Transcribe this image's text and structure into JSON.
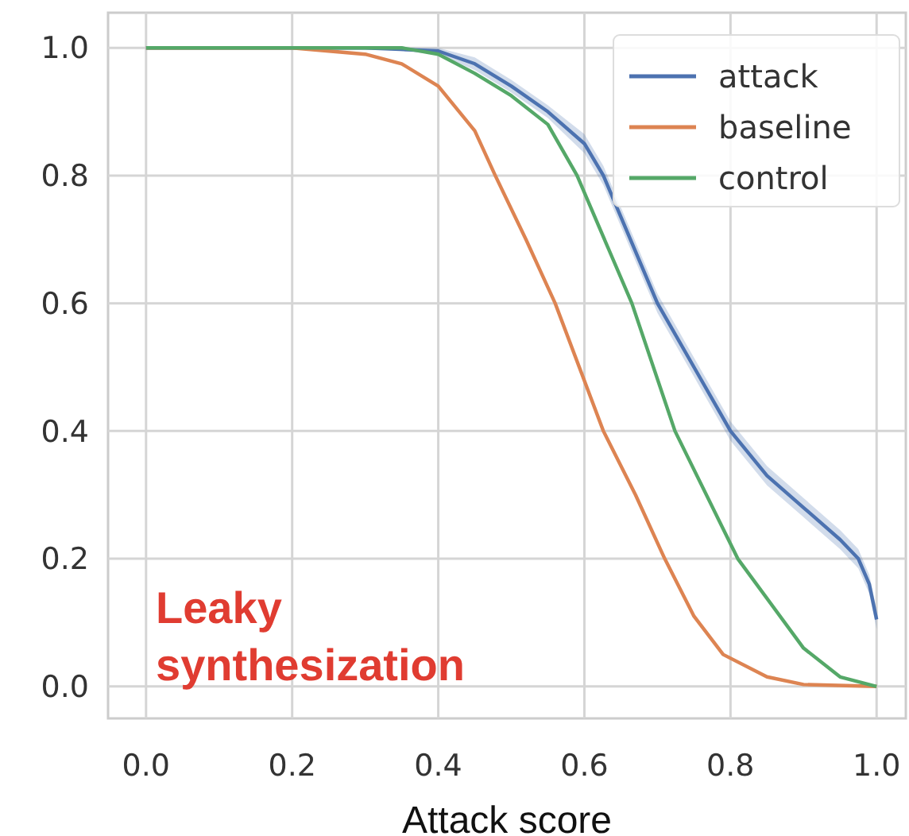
{
  "chart_data": {
    "type": "line",
    "xlabel": "Attack score",
    "xlim": [
      -0.052,
      1.04
    ],
    "ylim": [
      -0.05,
      1.055
    ],
    "xticks": [
      {
        "value": 0,
        "label": "0.0"
      },
      {
        "value": 0.2,
        "label": "0.2"
      },
      {
        "value": 0.4,
        "label": "0.4"
      },
      {
        "value": 0.6,
        "label": "0.6"
      },
      {
        "value": 0.8,
        "label": "0.8"
      },
      {
        "value": 1,
        "label": "1.0"
      }
    ],
    "yticks": [
      {
        "value": 0,
        "label": "0.0"
      },
      {
        "value": 0.2,
        "label": "0.2"
      },
      {
        "value": 0.4,
        "label": "0.4"
      },
      {
        "value": 0.6,
        "label": "0.6"
      },
      {
        "value": 0.8,
        "label": "0.8"
      },
      {
        "value": 1,
        "label": "1.0"
      }
    ],
    "grid": true,
    "legend": "top right",
    "line_style": "solid",
    "marker": "none",
    "annotations": [
      "Leaky\nsynthesization"
    ],
    "series": [
      {
        "name": "attack",
        "color": "#4c72b0",
        "x": [
          0,
          0.3,
          0.4,
          0.45,
          0.5,
          0.55,
          0.6,
          0.626,
          0.7,
          0.75,
          0.8,
          0.85,
          0.9,
          0.95,
          0.975,
          0.99,
          1.0
        ],
        "values": [
          1,
          1,
          0.995,
          0.975,
          0.94,
          0.9,
          0.85,
          0.8,
          0.6,
          0.5,
          0.4,
          0.33,
          0.28,
          0.23,
          0.2,
          0.16,
          0.105
        ],
        "lower": [
          1,
          1,
          0.99,
          0.965,
          0.93,
          0.89,
          0.835,
          0.785,
          0.585,
          0.485,
          0.385,
          0.315,
          0.265,
          0.215,
          0.185,
          0.145,
          0.09
        ],
        "upper": [
          1,
          1,
          1,
          0.985,
          0.95,
          0.91,
          0.865,
          0.815,
          0.615,
          0.515,
          0.415,
          0.345,
          0.295,
          0.245,
          0.215,
          0.175,
          0.12
        ]
      },
      {
        "name": "baseline",
        "color": "#dd8452",
        "x": [
          0,
          0.2,
          0.3,
          0.35,
          0.4,
          0.45,
          0.478,
          0.52,
          0.56,
          0.626,
          0.67,
          0.71,
          0.75,
          0.79,
          0.85,
          0.9,
          1.0
        ],
        "values": [
          1,
          1,
          0.99,
          0.975,
          0.94,
          0.87,
          0.8,
          0.7,
          0.6,
          0.4,
          0.3,
          0.2,
          0.11,
          0.05,
          0.015,
          0.003,
          0
        ]
      },
      {
        "name": "control",
        "color": "#55a868",
        "x": [
          0,
          0.35,
          0.4,
          0.45,
          0.5,
          0.55,
          0.59,
          0.665,
          0.724,
          0.81,
          0.9,
          0.95,
          1.0
        ],
        "values": [
          1,
          1,
          0.99,
          0.96,
          0.925,
          0.88,
          0.8,
          0.6,
          0.4,
          0.2,
          0.06,
          0.015,
          0
        ]
      }
    ]
  }
}
